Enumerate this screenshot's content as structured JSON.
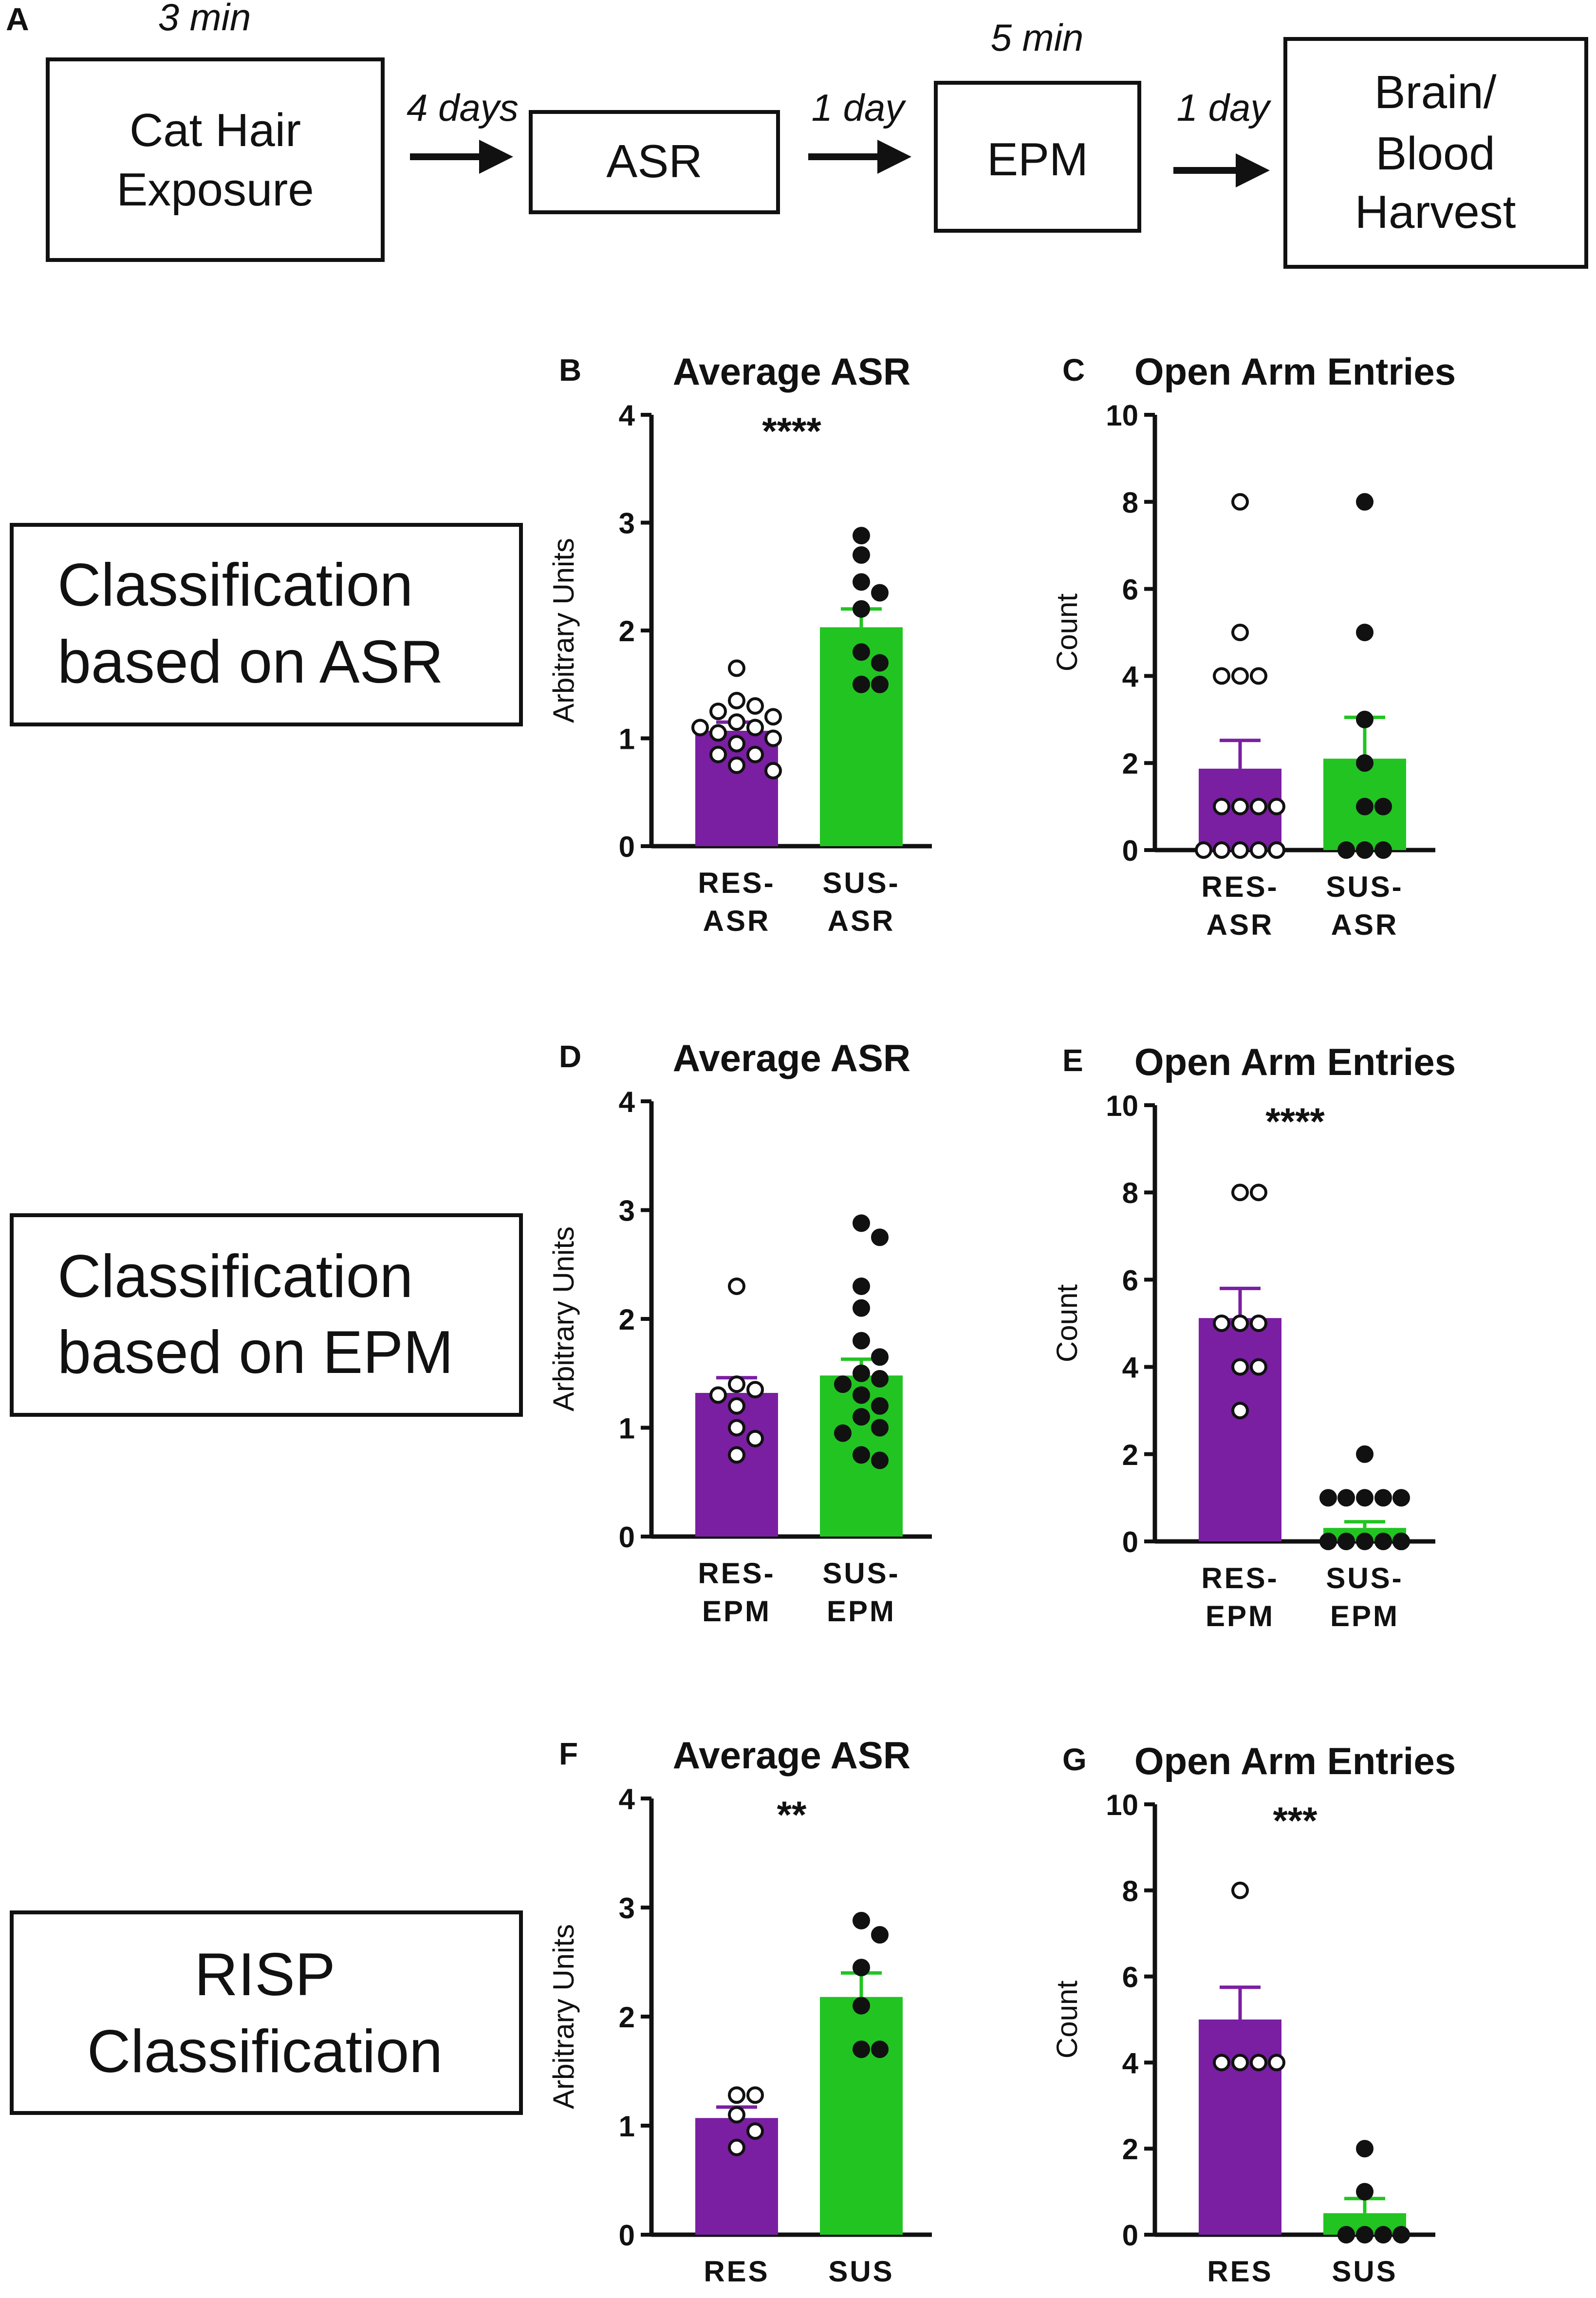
{
  "colors": {
    "res": "#7a1fa2",
    "sus": "#22c422",
    "ink": "#111111"
  },
  "timeline": {
    "panel_letter": "A",
    "steps": [
      {
        "label_lines": [
          "Cat Hair",
          "Exposure"
        ],
        "duration": "3 min"
      },
      {
        "label_lines": [
          "ASR"
        ],
        "duration": ""
      },
      {
        "label_lines": [
          "EPM"
        ],
        "duration": "5 min"
      },
      {
        "label_lines": [
          "Brain/",
          "Blood",
          "Harvest"
        ],
        "duration": ""
      }
    ],
    "arrows": [
      "4 days",
      "1 day",
      "1 day"
    ]
  },
  "classifications": [
    {
      "lines": [
        "Classification",
        "based on ASR"
      ]
    },
    {
      "lines": [
        "Classification",
        "based on EPM"
      ]
    },
    {
      "lines": [
        "RISP",
        "Classification"
      ]
    }
  ],
  "chart_data": [
    {
      "panel": "B",
      "type": "bar",
      "title": "Average ASR",
      "significance": "****",
      "ylabel": "Arbitrary Units",
      "ylim": [
        0,
        4
      ],
      "yticks": [
        "0",
        "1",
        "2",
        "3",
        "4"
      ],
      "categories": [
        [
          "RES-",
          "ASR"
        ],
        [
          "SUS-",
          "ASR"
        ]
      ],
      "values": [
        1.07,
        2.03
      ],
      "sem": [
        0.08,
        0.17
      ],
      "points": [
        [
          1.65,
          1.35,
          1.3,
          1.25,
          1.2,
          1.15,
          1.1,
          1.1,
          1.05,
          1.0,
          0.95,
          0.85,
          0.85,
          0.75,
          0.7
        ],
        [
          2.88,
          2.7,
          2.45,
          2.35,
          2.2,
          1.8,
          1.7,
          1.5,
          1.5
        ]
      ]
    },
    {
      "panel": "C",
      "type": "bar",
      "title": "Open  Arm  Entries",
      "significance": "",
      "ylabel": "Count",
      "ylim": [
        0,
        10
      ],
      "yticks": [
        "0",
        "2",
        "4",
        "6",
        "8",
        "10"
      ],
      "categories": [
        [
          "RES-",
          "ASR"
        ],
        [
          "SUS-",
          "ASR"
        ]
      ],
      "values": [
        1.87,
        2.1
      ],
      "sem": [
        0.65,
        0.95
      ],
      "points": [
        [
          8,
          5,
          4,
          4,
          4,
          1,
          1,
          1,
          1,
          0,
          0,
          0,
          0,
          0,
          0
        ],
        [
          8,
          5,
          3,
          2,
          1,
          1,
          0,
          0,
          0
        ]
      ]
    },
    {
      "panel": "D",
      "type": "bar",
      "title": "Average ASR",
      "significance": "",
      "ylabel": "Arbitrary Units",
      "ylim": [
        0,
        4
      ],
      "yticks": [
        "0",
        "1",
        "2",
        "3",
        "4"
      ],
      "categories": [
        [
          "RES-",
          "EPM"
        ],
        [
          "SUS-",
          "EPM"
        ]
      ],
      "values": [
        1.32,
        1.48
      ],
      "sem": [
        0.14,
        0.15
      ],
      "points": [
        [
          2.3,
          1.4,
          1.35,
          1.3,
          1.2,
          1.0,
          0.9,
          0.75
        ],
        [
          2.88,
          2.75,
          2.3,
          2.1,
          1.8,
          1.65,
          1.5,
          1.45,
          1.4,
          1.3,
          1.2,
          1.1,
          1.0,
          0.95,
          0.75,
          0.7
        ]
      ]
    },
    {
      "panel": "E",
      "type": "bar",
      "title": "Open  Arm  Entries",
      "significance": "****",
      "ylabel": "Count",
      "ylim": [
        0,
        10
      ],
      "yticks": [
        "0",
        "2",
        "4",
        "6",
        "8",
        "10"
      ],
      "categories": [
        [
          "RES-",
          "EPM"
        ],
        [
          "SUS-",
          "EPM"
        ]
      ],
      "values": [
        5.12,
        0.31
      ],
      "sem": [
        0.68,
        0.14
      ],
      "points": [
        [
          8,
          8,
          5,
          5,
          5,
          4,
          4,
          3
        ],
        [
          2,
          1,
          1,
          1,
          1,
          1,
          0,
          0,
          0,
          0,
          0,
          0,
          0,
          0,
          0,
          0
        ]
      ]
    },
    {
      "panel": "F",
      "type": "bar",
      "title": "Average ASR",
      "significance": "**",
      "ylabel": "Arbitrary Units",
      "ylim": [
        0,
        4
      ],
      "yticks": [
        "0",
        "1",
        "2",
        "3",
        "4"
      ],
      "categories": [
        [
          "RES"
        ],
        [
          "SUS"
        ]
      ],
      "values": [
        1.07,
        2.18
      ],
      "sem": [
        0.1,
        0.22
      ],
      "points": [
        [
          1.28,
          1.28,
          1.1,
          0.95,
          0.8
        ],
        [
          2.88,
          2.75,
          2.45,
          2.1,
          1.7,
          1.7
        ]
      ]
    },
    {
      "panel": "G",
      "type": "bar",
      "title": "Open  Arm  Entries",
      "significance": "***",
      "ylabel": "Count",
      "ylim": [
        0,
        10
      ],
      "yticks": [
        "0",
        "2",
        "4",
        "6",
        "8",
        "10"
      ],
      "categories": [
        [
          "RES"
        ],
        [
          "SUS"
        ]
      ],
      "values": [
        5.0,
        0.5
      ],
      "sem": [
        0.75,
        0.34
      ],
      "points": [
        [
          8,
          4,
          4,
          4,
          4
        ],
        [
          2,
          1,
          0,
          0,
          0,
          0
        ]
      ]
    }
  ]
}
